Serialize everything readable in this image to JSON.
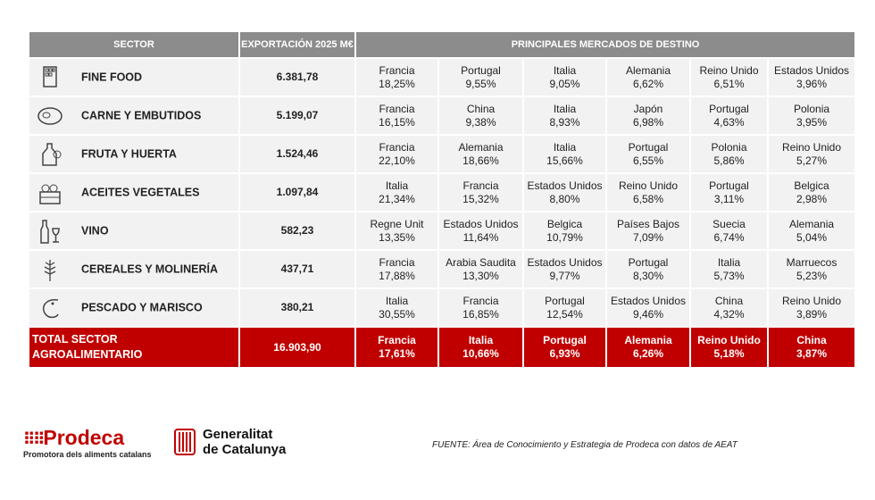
{
  "header": {
    "sector": "SECTOR",
    "export": "EXPORTACIÓN 2025 M€",
    "markets": "PRINCIPALES MERCADOS DE DESTINO"
  },
  "rows": [
    {
      "icon": "chocolate-icon",
      "sector": "FINE FOOD",
      "export": "6.381,78",
      "markets": [
        [
          "Francia",
          "18,25%"
        ],
        [
          "Portugal",
          "9,55%"
        ],
        [
          "Italia",
          "9,05%"
        ],
        [
          "Alemania",
          "6,62%"
        ],
        [
          "Reino Unido",
          "6,51%"
        ],
        [
          "Estados Unidos",
          "3,96%"
        ]
      ]
    },
    {
      "icon": "steak-icon",
      "sector": "CARNE Y EMBUTIDOS",
      "export": "5.199,07",
      "markets": [
        [
          "Francia",
          "16,15%"
        ],
        [
          "China",
          "9,38%"
        ],
        [
          "Italia",
          "8,93%"
        ],
        [
          "Japón",
          "6,98%"
        ],
        [
          "Portugal",
          "4,63%"
        ],
        [
          "Polonia",
          "3,95%"
        ]
      ]
    },
    {
      "icon": "oil-bottle-icon",
      "sector": "FRUTA Y HUERTA",
      "export": "1.524,46",
      "markets": [
        [
          "Francia",
          "22,10%"
        ],
        [
          "Alemania",
          "18,66%"
        ],
        [
          "Italia",
          "15,66%"
        ],
        [
          "Portugal",
          "6,55%"
        ],
        [
          "Polonia",
          "5,86%"
        ],
        [
          "Reino Unido",
          "5,27%"
        ]
      ]
    },
    {
      "icon": "vegetable-crate-icon",
      "sector": "ACEITES VEGETALES",
      "export": "1.097,84",
      "markets": [
        [
          "Italia",
          "21,34%"
        ],
        [
          "Francia",
          "15,32%"
        ],
        [
          "Estados Unidos",
          "8,80%"
        ],
        [
          "Reino Unido",
          "6,58%"
        ],
        [
          "Portugal",
          "3,11%"
        ],
        [
          "Belgica",
          "2,98%"
        ]
      ]
    },
    {
      "icon": "wine-icon",
      "sector": "VINO",
      "export": "582,23",
      "markets": [
        [
          "Regne Unit",
          "13,35%"
        ],
        [
          "Estados Unidos",
          "11,64%"
        ],
        [
          "Belgica",
          "10,79%"
        ],
        [
          "Países Bajos",
          "7,09%"
        ],
        [
          "Suecia",
          "6,74%"
        ],
        [
          "Alemania",
          "5,04%"
        ]
      ]
    },
    {
      "icon": "wheat-icon",
      "sector": "CEREALES Y MOLINERÍA",
      "export": "437,71",
      "markets": [
        [
          "Francia",
          "17,88%"
        ],
        [
          "Arabia Saudita",
          "13,30%"
        ],
        [
          "Estados Unidos",
          "9,77%"
        ],
        [
          "Portugal",
          "8,30%"
        ],
        [
          "Italia",
          "5,73%"
        ],
        [
          "Marruecos",
          "5,23%"
        ]
      ]
    },
    {
      "icon": "shrimp-icon",
      "sector": "PESCADO Y MARISCO",
      "export": "380,21",
      "markets": [
        [
          "Italia",
          "30,55%"
        ],
        [
          "Francia",
          "16,85%"
        ],
        [
          "Portugal",
          "12,54%"
        ],
        [
          "Estados Unidos",
          "9,46%"
        ],
        [
          "China",
          "4,32%"
        ],
        [
          "Reino Unido",
          "3,89%"
        ]
      ]
    }
  ],
  "total": {
    "sector_line1": "TOTAL SECTOR",
    "sector_line2": "AGROALIMENTARIO",
    "export": "16.903,90",
    "markets": [
      [
        "Francia",
        "17,61%"
      ],
      [
        "Italia",
        "10,66%"
      ],
      [
        "Portugal",
        "6,93%"
      ],
      [
        "Alemania",
        "6,26%"
      ],
      [
        "Reino Unido",
        "5,18%"
      ],
      [
        "China",
        "3,87%"
      ]
    ]
  },
  "footer": {
    "prodeca_name": "Prodeca",
    "prodeca_sub": "Promotora dels aliments catalans",
    "gen_line1": "Generalitat",
    "gen_line2": "de Catalunya",
    "source": "FUENTE:  Área de Conocimiento y Estrategia de Prodeca con datos de AEAT"
  },
  "colors": {
    "header": "#8c8c8c",
    "row": "#f2f2f2",
    "total": "#c00000"
  }
}
